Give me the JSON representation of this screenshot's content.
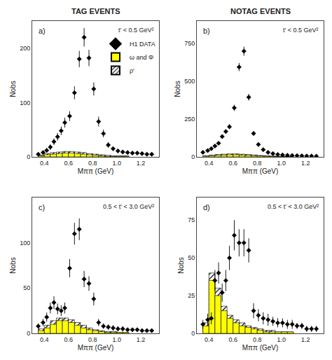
{
  "chart_data": {
    "type": "panels",
    "column_titles": [
      "TAG EVENTS",
      "NOTAG EVENTS"
    ],
    "xlabel": "Mππ (GeV)",
    "ylabel": "Nobs",
    "xlim": [
      0.3,
      1.35
    ],
    "xticks": [
      0.4,
      0.6,
      0.8,
      {
        "value": 1.0,
        "label": "1.0"
      },
      1.2
    ],
    "grid": false,
    "panels": [
      {
        "label": "a)",
        "annotation": "t' < 0.5 GeV²",
        "ylim": [
          0,
          250
        ],
        "yticks": [
          0,
          100,
          200
        ],
        "legend": "upper right",
        "series": [
          {
            "name": "ρ'",
            "type": "bar",
            "color": "white",
            "marker": "hatched",
            "bins": [
              0.35,
              0.4,
              0.45,
              0.5,
              0.55,
              0.6,
              0.65,
              0.7,
              0.75,
              0.8,
              0.85,
              0.9,
              0.95,
              1.0,
              1.05,
              1.1
            ],
            "values": [
              3,
              6,
              8,
              9,
              10,
              10,
              9,
              8,
              6,
              5,
              4,
              3,
              2,
              2,
              2
            ]
          },
          {
            "name": "ω and Φ",
            "type": "bar",
            "color": "yellow",
            "bins": [
              0.35,
              0.4,
              0.45,
              0.5,
              0.55,
              0.6,
              0.65,
              0.7,
              0.75,
              0.8,
              0.85,
              0.9,
              0.95,
              1.0,
              1.05,
              1.1
            ],
            "values": [
              2,
              4,
              5,
              6,
              7,
              7,
              6,
              5,
              4,
              3,
              2,
              1,
              1,
              1,
              1
            ]
          },
          {
            "name": "H1 DATA",
            "type": "scatter",
            "color": "black",
            "marker": "diamond",
            "x": [
              0.35,
              0.39,
              0.42,
              0.45,
              0.48,
              0.51,
              0.54,
              0.57,
              0.61,
              0.65,
              0.69,
              0.73,
              0.77,
              0.81,
              0.85,
              0.89,
              0.93,
              0.97,
              1.01,
              1.05,
              1.09,
              1.13,
              1.17,
              1.21,
              1.25,
              1.29
            ],
            "values": [
              5,
              8,
              12,
              18,
              28,
              37,
              48,
              63,
              75,
              118,
              180,
              220,
              182,
              125,
              65,
              43,
              22,
              15,
              11,
              9,
              8,
              7,
              7,
              6,
              5,
              5
            ],
            "errors": [
              3,
              3,
              4,
              5,
              6,
              7,
              8,
              9,
              9,
              12,
              15,
              17,
              15,
              12,
              9,
              7,
              5,
              4,
              4,
              3,
              3,
              3,
              3,
              3,
              3,
              3
            ],
            "x_error": 0.013
          }
        ]
      },
      {
        "label": "b)",
        "annotation": "t' < 0.5 GeV²",
        "ylim": [
          0,
          900
        ],
        "yticks": [
          0,
          250,
          500,
          750
        ],
        "series": [
          {
            "name": "ρ'",
            "type": "bar",
            "color": "white",
            "marker": "hatched",
            "bins": [
              0.35,
              0.4,
              0.45,
              0.5,
              0.55,
              0.6,
              0.65,
              0.7,
              0.75,
              0.8,
              0.85,
              0.9,
              0.95,
              1.0,
              1.05,
              1.1
            ],
            "values": [
              8,
              12,
              16,
              18,
              20,
              20,
              18,
              16,
              13,
              10,
              8,
              6,
              4,
              3,
              3
            ]
          },
          {
            "name": "ω and Φ",
            "type": "bar",
            "color": "yellow",
            "bins": [
              0.35,
              0.4,
              0.45,
              0.5,
              0.55,
              0.6,
              0.65,
              0.7,
              0.75,
              0.8,
              0.85,
              0.9,
              0.95,
              1.0,
              1.05,
              1.1
            ],
            "values": [
              5,
              8,
              10,
              12,
              14,
              14,
              12,
              10,
              8,
              6,
              4,
              3,
              2,
              2,
              2
            ]
          },
          {
            "name": "H1 DATA",
            "type": "scatter",
            "color": "black",
            "marker": "diamond",
            "x": [
              0.35,
              0.39,
              0.42,
              0.45,
              0.48,
              0.51,
              0.54,
              0.57,
              0.61,
              0.65,
              0.69,
              0.73,
              0.77,
              0.81,
              0.85,
              0.89,
              0.93,
              0.97,
              1.01,
              1.05,
              1.09,
              1.13,
              1.17,
              1.21,
              1.25,
              1.29
            ],
            "values": [
              30,
              42,
              55,
              72,
              90,
              135,
              168,
              200,
              325,
              595,
              700,
              395,
              155,
              82,
              48,
              30,
              22,
              16,
              13,
              11,
              9,
              8,
              7,
              6,
              6,
              5
            ],
            "errors": [
              6,
              7,
              8,
              9,
              10,
              13,
              14,
              16,
              20,
              27,
              30,
              22,
              14,
              10,
              8,
              6,
              5,
              4,
              4,
              4,
              3,
              3,
              3,
              3,
              3,
              3
            ],
            "x_error": 0.013
          }
        ]
      },
      {
        "label": "c)",
        "annotation": "0.5 < t' < 3.0 GeV²",
        "ylim": [
          0,
          150
        ],
        "yticks": [
          0,
          50,
          100
        ],
        "series": [
          {
            "name": "ρ'",
            "type": "bar",
            "color": "white",
            "marker": "hatched",
            "bins": [
              0.35,
              0.4,
              0.45,
              0.5,
              0.55,
              0.6,
              0.65,
              0.7,
              0.75,
              0.8,
              0.85,
              0.9,
              0.95,
              1.0,
              1.05,
              1.1
            ],
            "values": [
              5,
              9,
              14,
              17,
              17,
              15,
              12,
              9,
              6,
              4,
              3,
              2,
              2,
              1,
              1
            ]
          },
          {
            "name": "ω and Φ",
            "type": "bar",
            "color": "yellow",
            "bins": [
              0.35,
              0.4,
              0.45,
              0.5,
              0.55,
              0.6,
              0.65,
              0.7,
              0.75,
              0.8,
              0.85,
              0.9,
              0.95,
              1.0,
              1.05,
              1.1
            ],
            "values": [
              3,
              6,
              10,
              14,
              14,
              12,
              9,
              6,
              4,
              3,
              2,
              1,
              1,
              1,
              1
            ]
          },
          {
            "name": "H1 DATA",
            "type": "scatter",
            "color": "black",
            "marker": "diamond",
            "x": [
              0.35,
              0.39,
              0.42,
              0.45,
              0.48,
              0.51,
              0.54,
              0.57,
              0.61,
              0.65,
              0.69,
              0.73,
              0.77,
              0.81,
              0.85,
              0.89,
              0.93,
              0.97,
              1.01,
              1.05,
              1.09,
              1.13,
              1.17,
              1.21,
              1.25,
              1.29
            ],
            "values": [
              8,
              12,
              18,
              28,
              34,
              27,
              25,
              28,
              72,
              110,
              115,
              60,
              55,
              38,
              12,
              8,
              7,
              6,
              5,
              5,
              4,
              4,
              4,
              3,
              3,
              3
            ],
            "errors": [
              3,
              4,
              5,
              6,
              7,
              6,
              6,
              6,
              10,
              12,
              12,
              9,
              8,
              7,
              4,
              3,
              3,
              3,
              3,
              3,
              2,
              2,
              2,
              2,
              2,
              2
            ],
            "x_error": 0.013
          }
        ]
      },
      {
        "label": "d)",
        "annotation": "0.5 < t' < 3.0 GeV²",
        "ylim": [
          0,
          90
        ],
        "yticks": [
          0,
          25,
          50,
          75
        ],
        "series": [
          {
            "name": "ρ'",
            "type": "bar",
            "color": "white",
            "marker": "hatched",
            "bins": [
              0.35,
              0.4,
              0.45,
              0.5,
              0.55,
              0.6,
              0.65,
              0.7,
              0.75,
              0.8,
              0.85,
              0.9,
              0.95,
              1.0,
              1.05,
              1.1
            ],
            "values": [
              7,
              40,
              30,
              18,
              12,
              9,
              7,
              5,
              4,
              3,
              2,
              2,
              1,
              1,
              1
            ]
          },
          {
            "name": "ω and Φ",
            "type": "bar",
            "color": "yellow",
            "bins": [
              0.35,
              0.4,
              0.45,
              0.5,
              0.55,
              0.6,
              0.65,
              0.7,
              0.75,
              0.8,
              0.85,
              0.9,
              0.95,
              1.0,
              1.05,
              1.1
            ],
            "values": [
              5,
              35,
              25,
              15,
              10,
              7,
              5,
              4,
              3,
              2,
              1,
              1,
              1,
              1,
              1
            ]
          },
          {
            "name": "H1 DATA",
            "type": "scatter",
            "color": "black",
            "marker": "diamond",
            "x": [
              0.35,
              0.39,
              0.42,
              0.45,
              0.48,
              0.51,
              0.54,
              0.57,
              0.61,
              0.65,
              0.69,
              0.73,
              0.77,
              0.81,
              0.85,
              0.89,
              0.93,
              0.97,
              1.01,
              1.05,
              1.09,
              1.13,
              1.17,
              1.21,
              1.25,
              1.29
            ],
            "values": [
              6,
              9,
              10,
              35,
              40,
              27,
              35,
              50,
              65,
              60,
              60,
              55,
              15,
              12,
              10,
              9,
              8,
              7,
              7,
              6,
              6,
              5,
              5,
              3,
              3,
              3
            ],
            "errors": [
              3,
              4,
              4,
              7,
              7,
              6,
              7,
              8,
              10,
              9,
              9,
              8,
              5,
              4,
              4,
              4,
              3,
              3,
              3,
              3,
              3,
              2,
              2,
              2,
              2,
              2
            ],
            "x_error": 0.013
          }
        ]
      }
    ]
  }
}
